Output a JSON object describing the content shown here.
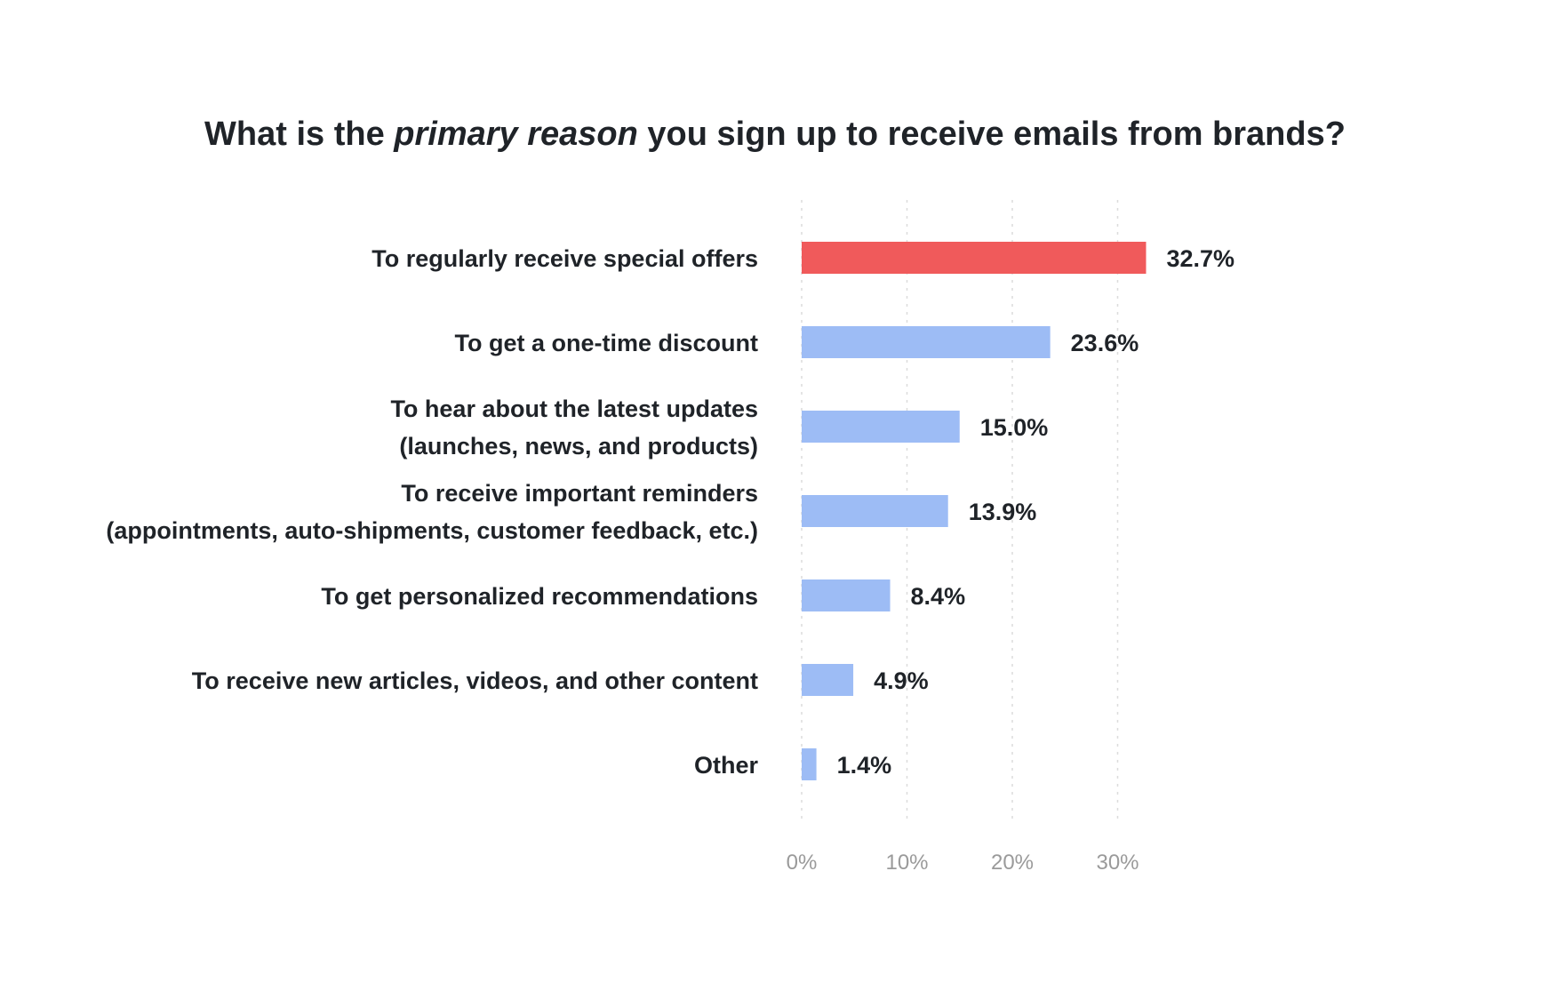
{
  "chart_data": {
    "type": "bar",
    "orientation": "horizontal",
    "title": {
      "before": "What is the ",
      "emphasis": "primary reason",
      "after": " you sign up to receive emails from brands?"
    },
    "categories": [
      [
        "To regularly receive special offers"
      ],
      [
        "To get a one-time discount"
      ],
      [
        "To hear about the latest updates",
        "(launches, news, and products)"
      ],
      [
        "To receive important reminders",
        "(appointments, auto-shipments, customer feedback, etc.)"
      ],
      [
        "To get personalized recommendations"
      ],
      [
        "To receive new articles, videos, and other content"
      ],
      [
        "Other"
      ]
    ],
    "values": [
      32.7,
      23.6,
      15.0,
      13.9,
      8.4,
      4.9,
      1.4
    ],
    "value_labels": [
      "32.7%",
      "23.6%",
      "15.0%",
      "13.9%",
      "8.4%",
      "4.9%",
      "1.4%"
    ],
    "xticks": [
      0,
      10,
      20,
      30
    ],
    "xtick_labels": [
      "0%",
      "10%",
      "20%",
      "30%"
    ],
    "xlim": [
      0,
      30
    ],
    "grid": true,
    "highlight_index": 0,
    "colors": {
      "highlight": "#f05a5b",
      "default": "#9dbcf5"
    }
  }
}
